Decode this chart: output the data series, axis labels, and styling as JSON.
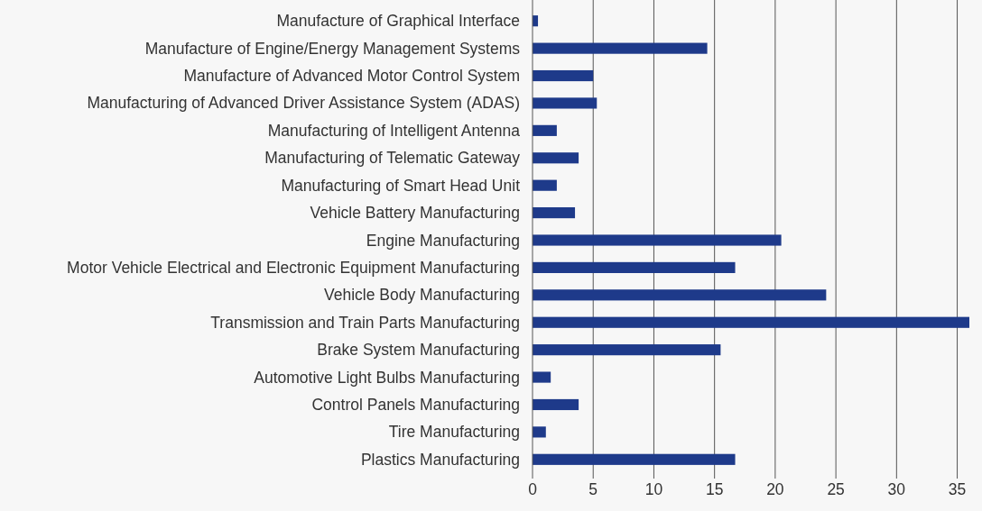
{
  "chart_data": {
    "type": "bar",
    "orientation": "horizontal",
    "categories": [
      "Manufacture of Graphical Interface",
      "Manufacture of Engine/Energy Management Systems",
      "Manufacture of Advanced Motor Control System",
      "Manufacturing of Advanced Driver Assistance System (ADAS)",
      "Manufacturing of Intelligent Antenna",
      "Manufacturing of Telematic Gateway",
      "Manufacturing of Smart Head Unit",
      "Vehicle Battery Manufacturing",
      "Engine Manufacturing",
      "Motor Vehicle Electrical and Electronic Equipment Manufacturing",
      "Vehicle Body Manufacturing",
      "Transmission and Train Parts Manufacturing",
      "Brake System Manufacturing",
      "Automotive Light Bulbs Manufacturing",
      "Control Panels Manufacturing",
      "Tire Manufacturing",
      "Plastics Manufacturing"
    ],
    "values": [
      0.45,
      14.4,
      5.0,
      5.3,
      2.0,
      3.8,
      2.0,
      3.5,
      20.5,
      16.7,
      24.2,
      36,
      15.5,
      1.5,
      3.8,
      1.1,
      16.7
    ],
    "color": "#1e3a8a",
    "xlim": [
      0,
      36
    ],
    "xticks": [
      0,
      5,
      10,
      15,
      20,
      25,
      30,
      35
    ],
    "grid": "x"
  }
}
